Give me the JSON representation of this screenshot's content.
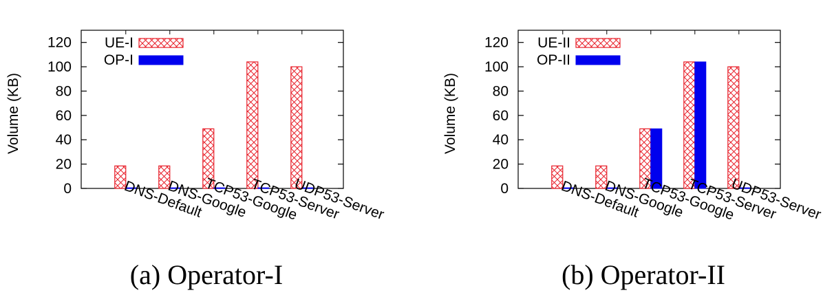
{
  "chart_data": [
    {
      "type": "bar",
      "title": "(a) Operator-I",
      "xlabel": "",
      "ylabel": "Volume (KB)",
      "ylim": [
        0,
        130
      ],
      "yticks": [
        0,
        20,
        40,
        60,
        80,
        100,
        120
      ],
      "categories": [
        "DNS-Default",
        "DNS-Google",
        "TCP53-Google",
        "TCP53-Server",
        "UDP53-Server"
      ],
      "series": [
        {
          "name": "UE-I",
          "values": [
            18.5,
            18.5,
            49,
            104,
            100
          ],
          "color": "#e8202a",
          "pattern": "crosshatch"
        },
        {
          "name": "OP-I",
          "values": [
            0.5,
            0.5,
            0.5,
            0.5,
            0.5
          ],
          "color": "#0000ee",
          "pattern": "solid"
        }
      ],
      "legend": "top-left",
      "grid": false
    },
    {
      "type": "bar",
      "title": "(b) Operator-II",
      "xlabel": "",
      "ylabel": "Volume (KB)",
      "ylim": [
        0,
        130
      ],
      "yticks": [
        0,
        20,
        40,
        60,
        80,
        100,
        120
      ],
      "categories": [
        "DNS-Default",
        "DNS-Google",
        "TCP53-Google",
        "TCP53-Server",
        "UDP53-Server"
      ],
      "series": [
        {
          "name": "UE-II",
          "values": [
            18.5,
            18.5,
            49,
            104,
            100
          ],
          "color": "#e8202a",
          "pattern": "crosshatch"
        },
        {
          "name": "OP-II",
          "values": [
            0.5,
            0.5,
            49,
            104,
            0.5
          ],
          "color": "#0000ee",
          "pattern": "solid"
        }
      ],
      "legend": "top-left",
      "grid": false
    }
  ]
}
